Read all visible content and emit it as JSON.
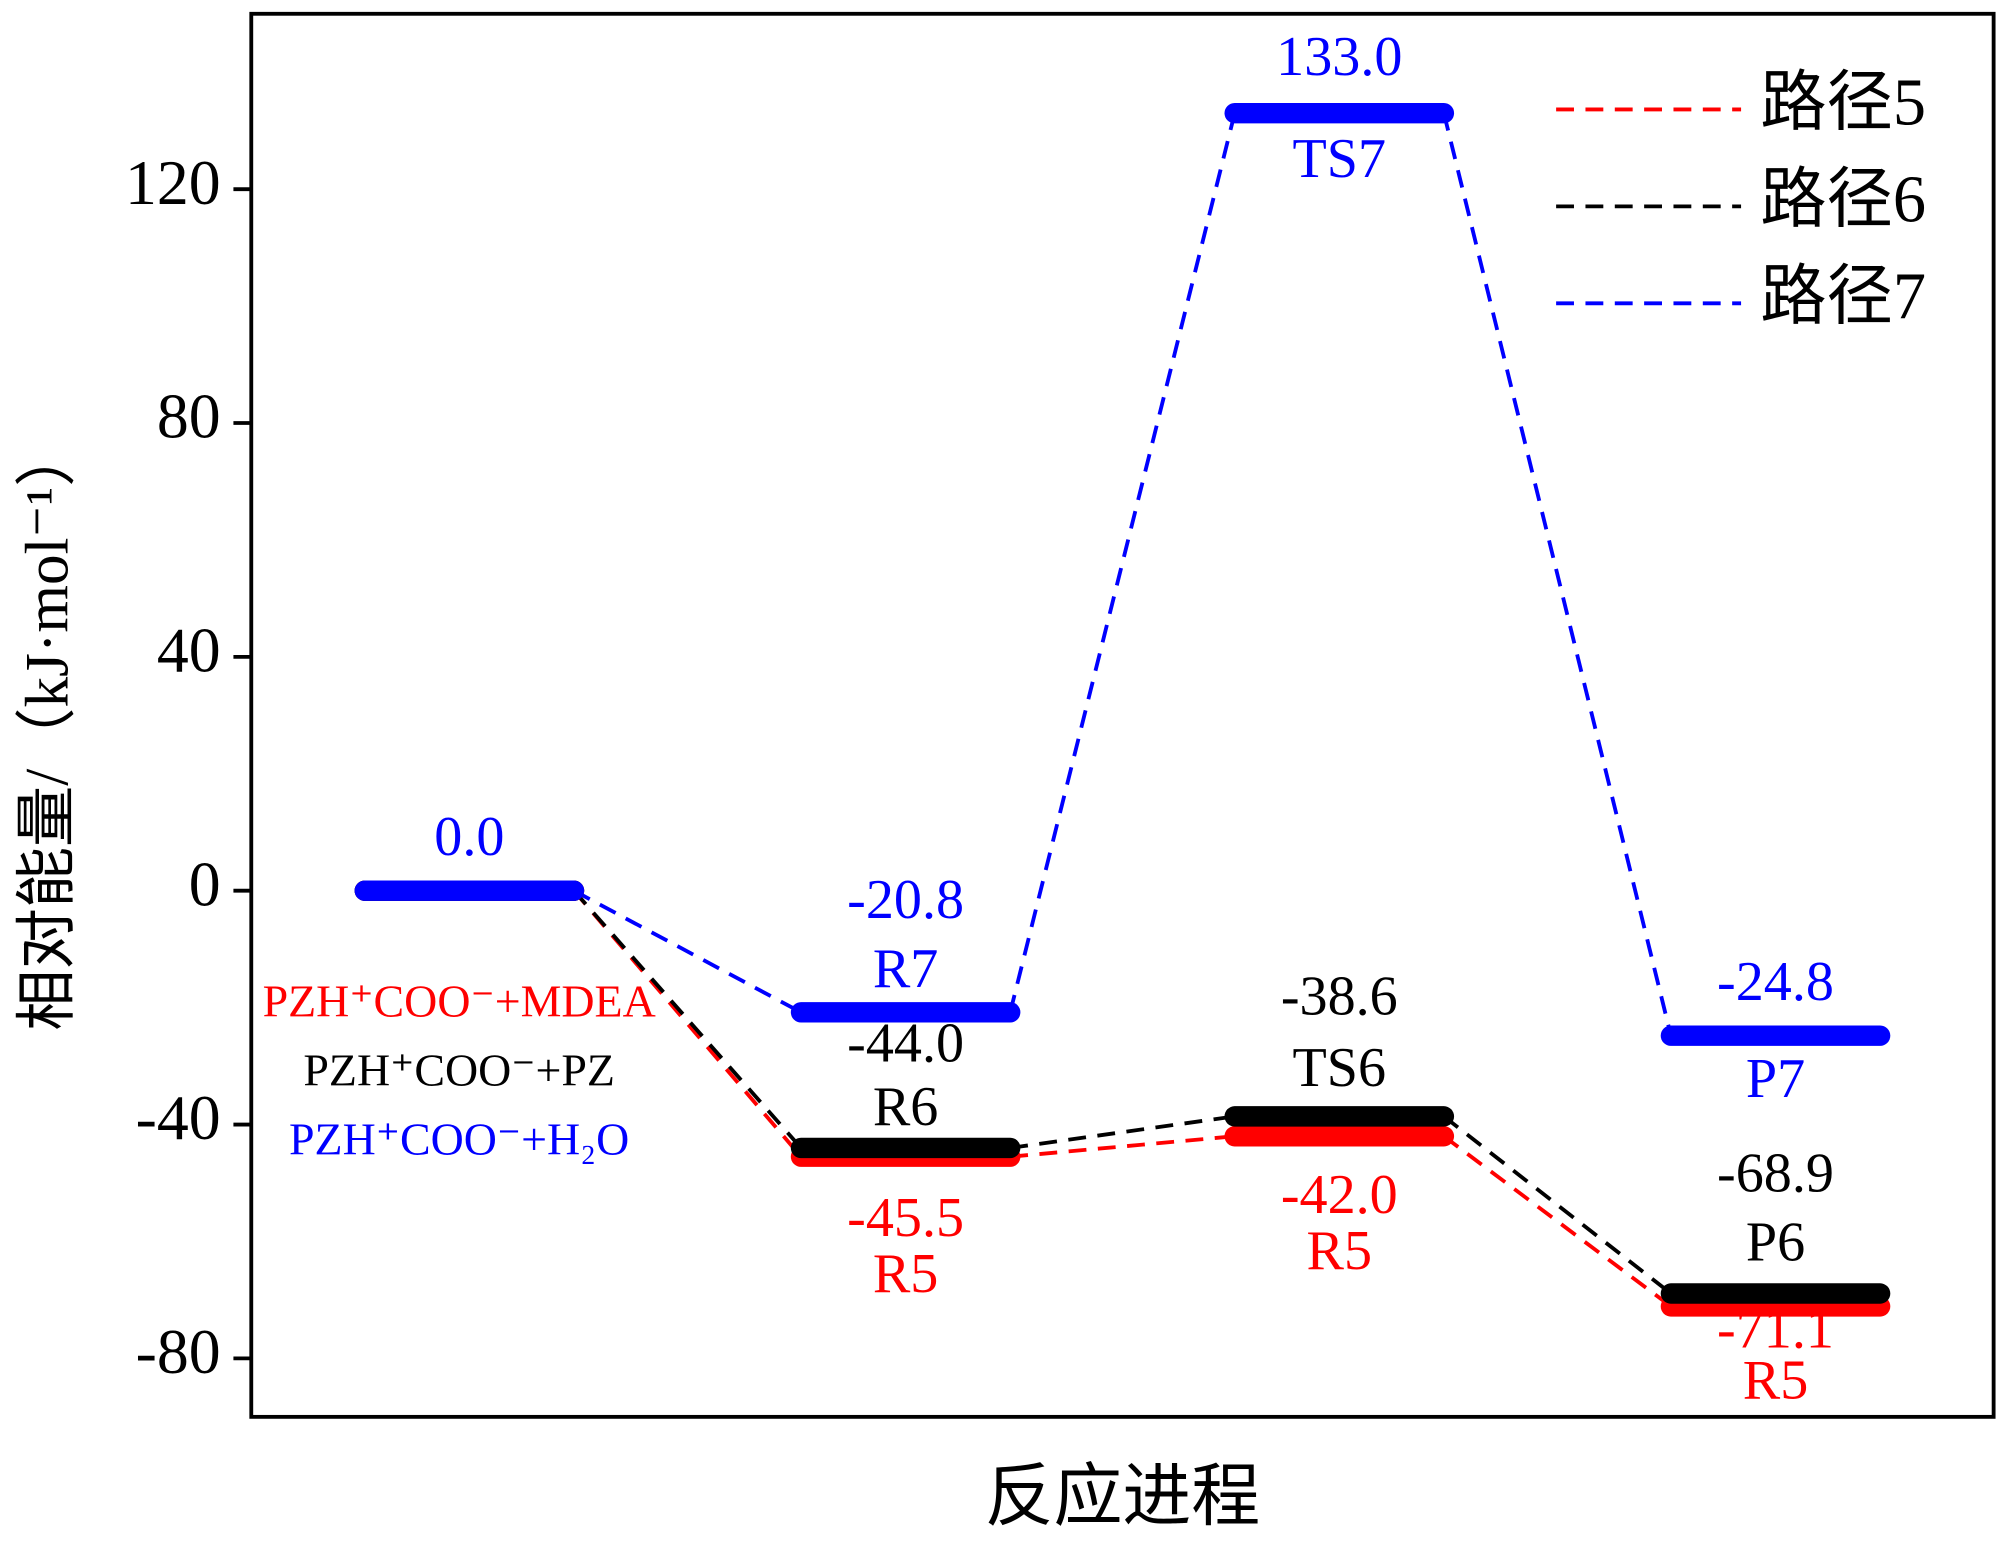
{
  "chart_data": {
    "type": "energy-profile",
    "xlabel": "反应进程",
    "ylabel": "相对能量/（kJ·mol⁻¹）",
    "ylim": [
      -90,
      150
    ],
    "yticks": [
      -80,
      -40,
      0,
      40,
      80,
      120
    ],
    "legend_position": "upper right",
    "series": [
      {
        "name": "路径5",
        "color": "#ff0000",
        "values": [
          0,
          -45.5,
          -42.0,
          -71.1
        ],
        "value_labels": [
          null,
          "-45.5",
          "-42.0",
          "-71.1"
        ],
        "point_labels": [
          null,
          "R5",
          "R5",
          "R5"
        ],
        "start_label": "PZH⁺COO⁻+MDEA"
      },
      {
        "name": "路径6",
        "color": "#000000",
        "values": [
          0,
          -44.0,
          -38.6,
          -68.9
        ],
        "value_labels": [
          null,
          "-44.0",
          "-38.6",
          "-68.9"
        ],
        "point_labels": [
          null,
          "R6",
          "TS6",
          "P6"
        ],
        "start_label": "PZH⁺COO⁻+PZ"
      },
      {
        "name": "路径7",
        "color": "#0000ff",
        "values": [
          0,
          -20.8,
          133.0,
          -24.8
        ],
        "value_labels": [
          "0.0",
          "-20.8",
          "133.0",
          "-24.8"
        ],
        "point_labels": [
          null,
          "R7",
          "TS7",
          "P7"
        ],
        "start_label": "PZH⁺COO⁻+H₂O"
      }
    ]
  }
}
